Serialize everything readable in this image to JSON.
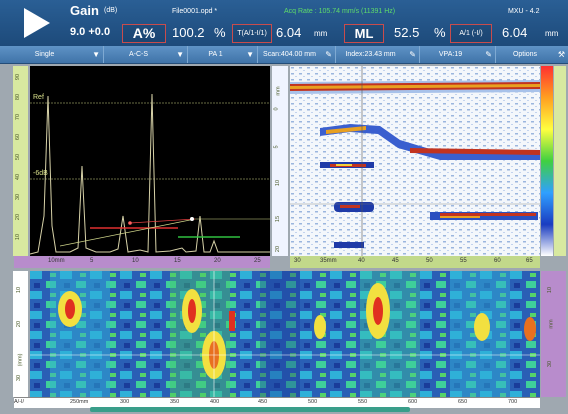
{
  "header": {
    "gain_label": "Gain",
    "gain_unit": "(dB)",
    "file_name": "File0001.opd *",
    "acq_rate": "Acq Rate : 105.74 mm/s (11391 Hz)",
    "mxu": "MXU - 4.2",
    "gain_value": "9.0 +0.0",
    "a_percent": "A%",
    "a_value": "100.2",
    "percent_sign": "%",
    "t_label": "T(A/1-I/1)",
    "t_value": "6.04",
    "mm1": "mm",
    "ml": "ML",
    "ml_value": "52.5",
    "percent2": "%",
    "a1_label": "A/1 (-I/)",
    "a1_value": "6.04",
    "mm2": "mm"
  },
  "toolbar": [
    {
      "label": "Single",
      "icon": "chevron-down-icon"
    },
    {
      "label": "A-C-S",
      "icon": "chevron-down-icon"
    },
    {
      "label": "PA 1",
      "icon": "chevron-down-icon"
    },
    {
      "label": "Scan:404.00 mm",
      "icon": "pencil-icon"
    },
    {
      "label": "Index:23.43 mm",
      "icon": "pencil-icon"
    },
    {
      "label": "VPA:19",
      "icon": "pencil-icon"
    },
    {
      "label": "Options",
      "icon": "wrench-icon"
    }
  ],
  "ascan": {
    "ref_label": "Ref",
    "db_label": "-6dB",
    "y_ticks": [
      "90",
      "80",
      "70",
      "60",
      "50",
      "40",
      "30",
      "20",
      "10"
    ],
    "x_ticks": [
      "10mm",
      "5",
      "10",
      "15",
      "20",
      "25"
    ]
  },
  "bscan": {
    "unit": "mm",
    "y_ticks": [
      "0",
      "5",
      "10",
      "15",
      "20"
    ],
    "x_ticks": [
      "30",
      "35mm",
      "40",
      "45",
      "50",
      "55",
      "60",
      "65"
    ]
  },
  "cscan": {
    "y_unit": "(mm)",
    "y_ticks": [
      "10",
      "20",
      "30"
    ],
    "right_unit": "mm",
    "right_ticks": [
      "10",
      "20",
      "30"
    ],
    "x_ticks": [
      "250mm",
      "300",
      "350",
      "400",
      "450",
      "500",
      "550",
      "600",
      "650",
      "700"
    ],
    "corner_label": "A/-I/"
  },
  "colors": {
    "header_bg": "#1d4a7a",
    "accent_red": "#c94c4c",
    "ascan_trace": "#d7d2a8",
    "gate_red": "#e03030",
    "gate_green": "#30c040",
    "ruler_green": "#d8e9a0",
    "ruler_purple": "#b88ccc"
  }
}
